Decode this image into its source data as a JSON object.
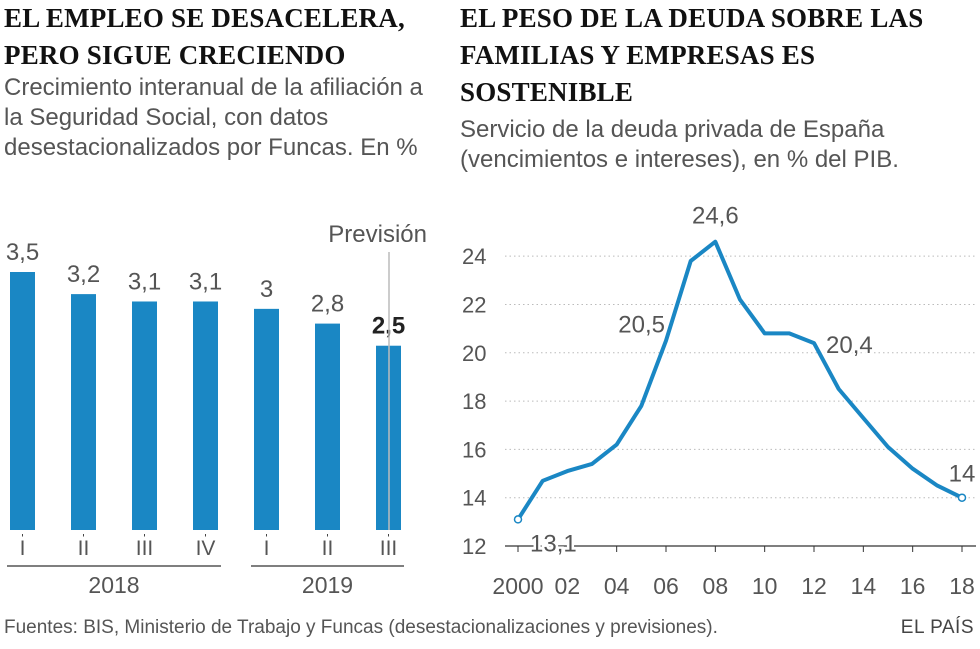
{
  "left": {
    "title": "EL EMPLEO SE DESACELERA, PERO SIGUE CRECIENDO",
    "subtitle": "Crecimiento interanual de la afiliación a la Seguridad Social, con datos desestacionalizados por Funcas. En %"
  },
  "right": {
    "title": "EL PESO DE LA DEUDA SOBRE LAS FAMILIAS Y EMPRESAS ES SOSTENIBLE",
    "subtitle": "Servicio de la deuda privada de España (vencimientos e intereses), en % del PIB."
  },
  "footer": {
    "sources": "Fuentes: BIS, Ministerio de Trabajo y Funcas (desestacionalizaciones y previsiones).",
    "brand": "EL PAÍS"
  },
  "colors": {
    "accent": "#1a87c4",
    "text": "#222222",
    "muted": "#555555",
    "grid": "#bbbbbb"
  },
  "chart_data": [
    {
      "type": "bar",
      "title": "EL EMPLEO SE DESACELERA, PERO SIGUE CRECIENDO",
      "subtitle": "Crecimiento interanual de la afiliación a la Seguridad Social, con datos desestacionalizados por Funcas. En %",
      "categories": [
        "I",
        "II",
        "III",
        "IV",
        "I",
        "II",
        "III"
      ],
      "years": [
        {
          "label": "2018",
          "from": 0,
          "to": 3
        },
        {
          "label": "2019",
          "from": 4,
          "to": 6
        }
      ],
      "values": [
        3.5,
        3.2,
        3.1,
        3.1,
        3.0,
        2.8,
        2.5
      ],
      "value_labels": [
        "3,5",
        "3,2",
        "3,1",
        "3,1",
        "3",
        "2,8",
        "2,5"
      ],
      "forecast_index": 6,
      "forecast_label": "Previsión",
      "ylim": [
        0,
        3.5
      ]
    },
    {
      "type": "line",
      "title": "EL PESO DE LA DEUDA SOBRE LAS FAMILIAS Y EMPRESAS ES SOSTENIBLE",
      "subtitle": "Servicio de la deuda privada de España (vencimientos e intereses), en % del PIB.",
      "x": [
        2000,
        2001,
        2002,
        2003,
        2004,
        2005,
        2006,
        2007,
        2008,
        2009,
        2010,
        2011,
        2012,
        2013,
        2014,
        2015,
        2016,
        2017,
        2018
      ],
      "y": [
        13.1,
        14.7,
        15.1,
        15.4,
        16.2,
        17.8,
        20.5,
        23.8,
        24.6,
        22.2,
        20.8,
        20.8,
        20.4,
        18.5,
        17.3,
        16.1,
        15.2,
        14.5,
        14.0
      ],
      "xticks": [
        2000,
        2002,
        2004,
        2006,
        2008,
        2010,
        2012,
        2014,
        2016,
        2018
      ],
      "xtick_labels": [
        "2000",
        "02",
        "04",
        "06",
        "08",
        "10",
        "12",
        "14",
        "16",
        "18"
      ],
      "yticks": [
        12,
        14,
        16,
        18,
        20,
        22,
        24
      ],
      "yticks_labels": [
        "12",
        "14",
        "16",
        "18",
        "20",
        "22",
        "24"
      ],
      "ylim": [
        12,
        25
      ],
      "xlim": [
        2000,
        2018
      ],
      "annotations": [
        {
          "x": 2000,
          "y": 13.1,
          "label": "13,1"
        },
        {
          "x": 2006,
          "y": 20.5,
          "label": "20,5"
        },
        {
          "x": 2008,
          "y": 24.6,
          "label": "24,6"
        },
        {
          "x": 2012,
          "y": 20.4,
          "label": "20,4"
        },
        {
          "x": 2018,
          "y": 14.0,
          "label": "14"
        }
      ]
    }
  ]
}
